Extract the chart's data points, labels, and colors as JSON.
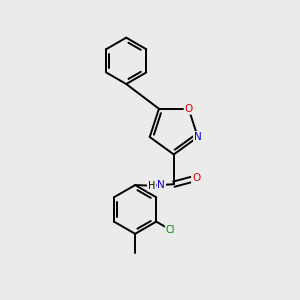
{
  "background_color": "#ebebeb",
  "bond_color": "#000000",
  "atom_colors": {
    "N": "#0000cc",
    "O": "#dd0000",
    "Cl": "#008800",
    "C": "#000000",
    "H": "#000000"
  },
  "figsize": [
    3.0,
    3.0
  ],
  "dpi": 100,
  "lw": 1.4,
  "fontsize": 7.5
}
